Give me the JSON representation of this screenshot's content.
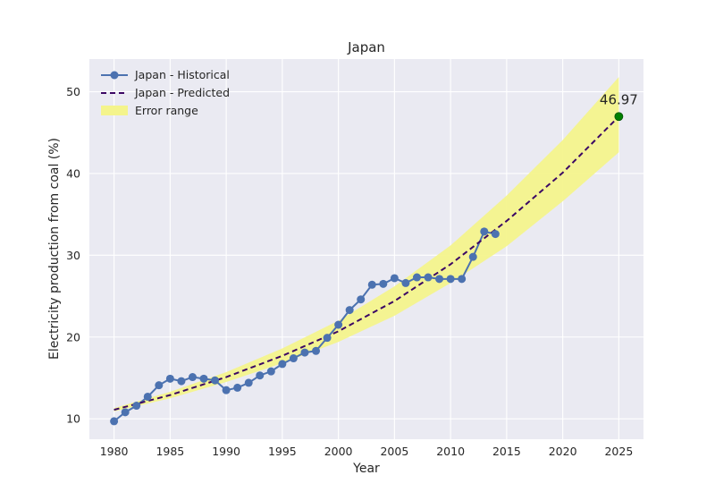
{
  "chart_data": {
    "type": "line",
    "title": "Japan",
    "xlabel": "Year",
    "ylabel": "Electricity production from coal (%)",
    "xlim": [
      1977.8,
      2027.2
    ],
    "ylim": [
      7.5,
      54.0
    ],
    "xticks": [
      1980,
      1985,
      1990,
      1995,
      2000,
      2005,
      2010,
      2015,
      2020,
      2025
    ],
    "yticks": [
      10,
      20,
      30,
      40,
      50
    ],
    "grid": true,
    "legend_position": "upper-left",
    "colors": {
      "background": "#eaeaf2",
      "grid": "#ffffff",
      "historical": "#4c72b0",
      "predicted": "#3b0764",
      "band": "#f4f48c",
      "endpoint": "#008000"
    },
    "series": [
      {
        "name": "Japan - Historical",
        "style": "solid-markers",
        "x": [
          1980,
          1981,
          1982,
          1983,
          1984,
          1985,
          1986,
          1987,
          1988,
          1989,
          1990,
          1991,
          1992,
          1993,
          1994,
          1995,
          1996,
          1997,
          1998,
          1999,
          2000,
          2001,
          2002,
          2003,
          2004,
          2005,
          2006,
          2007,
          2008,
          2009,
          2010,
          2011,
          2012,
          2013,
          2014
        ],
        "y": [
          9.7,
          10.8,
          11.6,
          12.7,
          14.1,
          14.9,
          14.6,
          15.1,
          14.9,
          14.7,
          13.5,
          13.8,
          14.4,
          15.3,
          15.8,
          16.7,
          17.4,
          18.1,
          18.3,
          19.9,
          21.5,
          23.3,
          24.6,
          26.4,
          26.5,
          27.2,
          26.6,
          27.3,
          27.3,
          27.1,
          27.1,
          27.1,
          29.8,
          32.9,
          32.6
        ]
      },
      {
        "name": "Japan - Predicted",
        "style": "dashed",
        "x": [
          1980,
          1985,
          1990,
          1995,
          2000,
          2005,
          2010,
          2015,
          2020,
          2025
        ],
        "y": [
          11.1,
          12.9,
          15.1,
          17.7,
          20.7,
          24.4,
          28.9,
          34.2,
          40.1,
          46.97
        ]
      },
      {
        "name": "Error range",
        "style": "band",
        "x": [
          1980,
          1985,
          1990,
          1995,
          2000,
          2005,
          2010,
          2015,
          2020,
          2025
        ],
        "lower": [
          10.9,
          12.5,
          14.5,
          16.8,
          19.4,
          22.6,
          26.6,
          31.1,
          36.6,
          42.6
        ],
        "upper": [
          11.3,
          13.3,
          15.7,
          18.6,
          22.0,
          26.2,
          31.2,
          37.3,
          44.1,
          51.8
        ]
      }
    ],
    "annotation": {
      "text": "46.97",
      "x": 2025,
      "y": 46.97
    }
  }
}
